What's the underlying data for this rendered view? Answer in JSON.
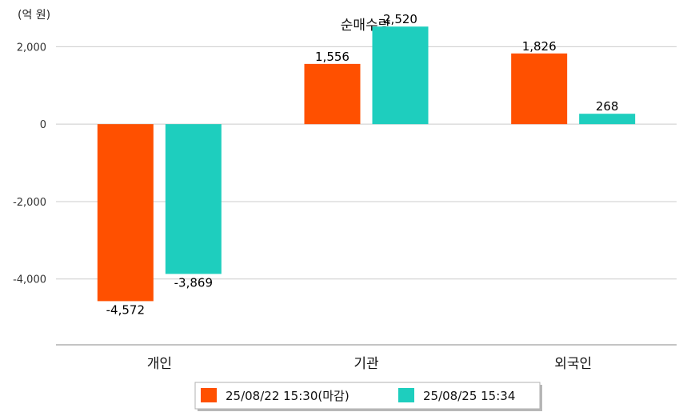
{
  "chart_data": {
    "type": "bar",
    "title": "순매수량",
    "unit_label": "(억 원)",
    "categories": [
      "개인",
      "기관",
      "외국인"
    ],
    "series": [
      {
        "name": "25/08/22 15:30(마감)",
        "color": "#FF5000",
        "values": [
          -4572,
          1556,
          1826
        ]
      },
      {
        "name": "25/08/25 15:34",
        "color": "#1ECEBE",
        "values": [
          -3869,
          2520,
          268
        ]
      }
    ],
    "ylim": [
      -5700,
      3000
    ],
    "yticks": [
      -4000,
      -2000,
      0,
      2000
    ],
    "grid": true,
    "legend": "bottom-center",
    "data_labels": true
  }
}
